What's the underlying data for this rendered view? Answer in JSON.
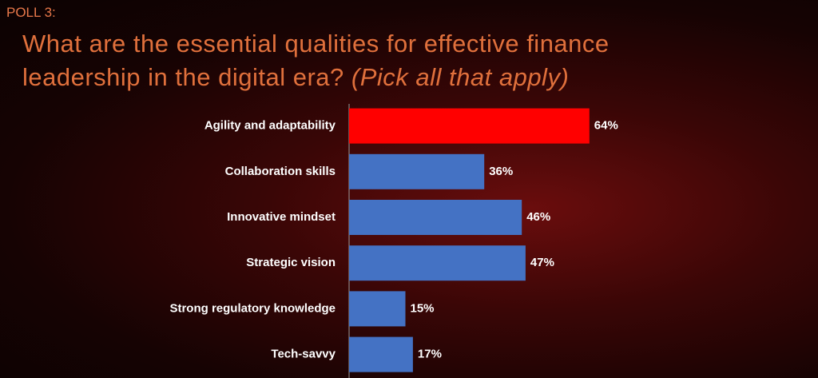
{
  "chart_data": {
    "type": "bar",
    "orientation": "horizontal",
    "label": "POLL 3:",
    "title": "What are the essential qualities for effective finance leadership in the digital era?",
    "subtitle": "(Pick all that apply)",
    "categories": [
      "Agility and adaptability",
      "Collaboration skills",
      "Innovative mindset",
      "Strategic vision",
      "Strong regulatory knowledge",
      "Tech-savvy"
    ],
    "values": [
      64,
      36,
      46,
      47,
      15,
      17
    ],
    "value_labels": [
      "64%",
      "36%",
      "46%",
      "47%",
      "15%",
      "17%"
    ],
    "colors": [
      "#ff0000",
      "#4472c4",
      "#4472c4",
      "#4472c4",
      "#4472c4",
      "#4472c4"
    ],
    "xlim": [
      0,
      100
    ]
  }
}
